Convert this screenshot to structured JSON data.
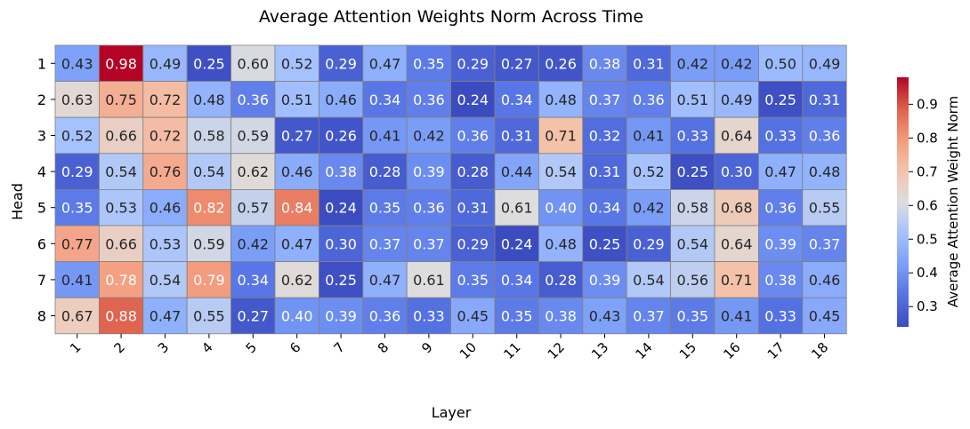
{
  "chart_data": {
    "type": "heatmap",
    "title": "Average Attention Weights Norm Across Time",
    "xlabel": "Layer",
    "ylabel": "Head",
    "x_categories": [
      "1",
      "2",
      "3",
      "4",
      "5",
      "6",
      "7",
      "8",
      "9",
      "10",
      "11",
      "12",
      "13",
      "14",
      "15",
      "16",
      "17",
      "18"
    ],
    "y_categories": [
      "1",
      "2",
      "3",
      "4",
      "5",
      "6",
      "7",
      "8"
    ],
    "values": [
      [
        0.43,
        0.98,
        0.49,
        0.25,
        0.6,
        0.52,
        0.29,
        0.47,
        0.35,
        0.29,
        0.27,
        0.26,
        0.38,
        0.31,
        0.42,
        0.42,
        0.5,
        0.49
      ],
      [
        0.63,
        0.75,
        0.72,
        0.48,
        0.36,
        0.51,
        0.46,
        0.34,
        0.36,
        0.24,
        0.34,
        0.48,
        0.37,
        0.36,
        0.51,
        0.49,
        0.25,
        0.31
      ],
      [
        0.52,
        0.66,
        0.72,
        0.58,
        0.59,
        0.27,
        0.26,
        0.41,
        0.42,
        0.36,
        0.31,
        0.71,
        0.32,
        0.41,
        0.33,
        0.64,
        0.33,
        0.36
      ],
      [
        0.29,
        0.54,
        0.76,
        0.54,
        0.62,
        0.46,
        0.38,
        0.28,
        0.39,
        0.28,
        0.44,
        0.54,
        0.31,
        0.52,
        0.25,
        0.3,
        0.47,
        0.48
      ],
      [
        0.35,
        0.53,
        0.46,
        0.82,
        0.57,
        0.84,
        0.24,
        0.35,
        0.36,
        0.31,
        0.61,
        0.4,
        0.34,
        0.42,
        0.58,
        0.68,
        0.36,
        0.55
      ],
      [
        0.77,
        0.66,
        0.53,
        0.59,
        0.42,
        0.47,
        0.3,
        0.37,
        0.37,
        0.29,
        0.24,
        0.48,
        0.25,
        0.29,
        0.54,
        0.64,
        0.39,
        0.37
      ],
      [
        0.41,
        0.78,
        0.54,
        0.79,
        0.34,
        0.62,
        0.25,
        0.47,
        0.61,
        0.35,
        0.34,
        0.28,
        0.39,
        0.54,
        0.56,
        0.71,
        0.38,
        0.46
      ],
      [
        0.67,
        0.88,
        0.47,
        0.55,
        0.27,
        0.4,
        0.39,
        0.36,
        0.33,
        0.45,
        0.35,
        0.38,
        0.43,
        0.37,
        0.35,
        0.41,
        0.33,
        0.45
      ]
    ],
    "colorbar": {
      "label": "Average Attention Weight Norm",
      "range": [
        0.24,
        0.98
      ],
      "ticks": [
        "0.3",
        "0.4",
        "0.5",
        "0.6",
        "0.7",
        "0.8",
        "0.9"
      ],
      "colormap": "coolwarm"
    },
    "grid": true,
    "value_format": "2 decimals",
    "x_tick_rotation": "45"
  },
  "colors": {
    "cell_border": "#808080",
    "text_dark": "#262626",
    "text_light": "#ffffff"
  }
}
